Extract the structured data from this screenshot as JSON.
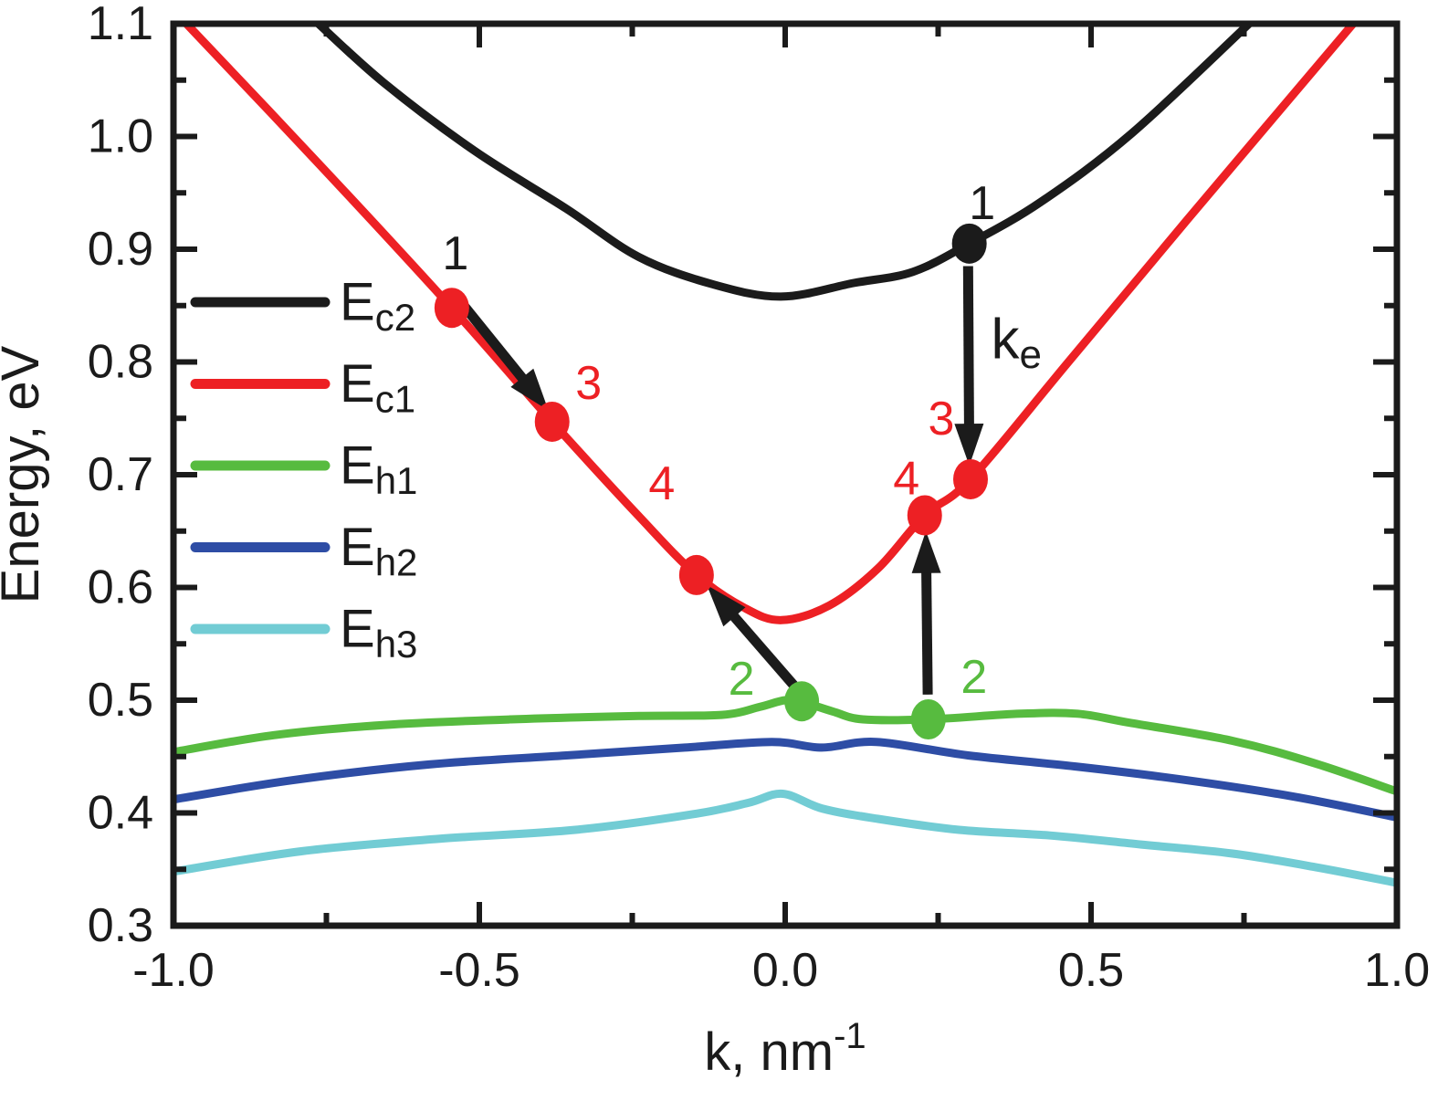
{
  "figure": {
    "kind": "band-structure-dispersion-plot",
    "background": "#ffffff",
    "frame_color": "#1b1b1b"
  },
  "chart_data": {
    "type": "line",
    "title": "",
    "x_axis": {
      "label_main": "k, nm",
      "label_sup": "-1",
      "min": -1.0,
      "max": 1.0,
      "tick_labels": [
        {
          "v": -1.0,
          "t": "-1.0"
        },
        {
          "v": -0.5,
          "t": "-0.5"
        },
        {
          "v": 0.0,
          "t": "0.0"
        },
        {
          "v": 0.5,
          "t": "0.5"
        },
        {
          "v": 1.0,
          "t": "1.0"
        }
      ],
      "major_ticks": [
        -0.5,
        0.0,
        0.5
      ],
      "minor_ticks": [
        -0.75,
        -0.25,
        0.25,
        0.75
      ]
    },
    "y_axis": {
      "label": "Energy, eV",
      "min": 0.3,
      "max": 1.1,
      "tick_labels": [
        {
          "v": 1.1,
          "t": "1.1"
        },
        {
          "v": 1.0,
          "t": "1.0"
        },
        {
          "v": 0.9,
          "t": "0.9"
        },
        {
          "v": 0.8,
          "t": "0.8"
        },
        {
          "v": 0.7,
          "t": "0.7"
        },
        {
          "v": 0.6,
          "t": "0.6"
        },
        {
          "v": 0.5,
          "t": "0.5"
        },
        {
          "v": 0.4,
          "t": "0.4"
        },
        {
          "v": 0.3,
          "t": "0.3"
        }
      ],
      "major_ticks": [
        0.4,
        0.5,
        0.6,
        0.7,
        0.8,
        0.9,
        1.0
      ],
      "minor_ticks": [
        0.35,
        0.45,
        0.55,
        0.65,
        0.75,
        0.85,
        0.95,
        1.05
      ]
    },
    "legend_position": "upper-left",
    "series": [
      {
        "id": "Ec2",
        "legend_main": "E",
        "legend_sub": "c2",
        "color": "#1b1b1b",
        "points": [
          [
            -0.769,
            1.103
          ],
          [
            -0.657,
            1.048
          ],
          [
            -0.507,
            0.987
          ],
          [
            -0.358,
            0.936
          ],
          [
            -0.239,
            0.893
          ],
          [
            -0.119,
            0.869
          ],
          [
            -0.007,
            0.858
          ],
          [
            0.112,
            0.87
          ],
          [
            0.209,
            0.88
          ],
          [
            0.301,
            0.905
          ],
          [
            0.418,
            0.942
          ],
          [
            0.567,
            1.003
          ],
          [
            0.764,
            1.103
          ]
        ]
      },
      {
        "id": "Ec1",
        "legend_main": "E",
        "legend_sub": "c1",
        "color": "#ed2024",
        "points": [
          [
            -0.984,
            1.103
          ],
          [
            -0.761,
            0.975
          ],
          [
            -0.545,
            0.848
          ],
          [
            -0.381,
            0.747
          ],
          [
            -0.239,
            0.663
          ],
          [
            -0.145,
            0.611
          ],
          [
            -0.067,
            0.582
          ],
          [
            -0.006,
            0.571
          ],
          [
            0.072,
            0.584
          ],
          [
            0.152,
            0.617
          ],
          [
            0.228,
            0.664
          ],
          [
            0.303,
            0.696
          ],
          [
            0.463,
            0.8
          ],
          [
            0.657,
            0.926
          ],
          [
            0.933,
            1.103
          ]
        ]
      },
      {
        "id": "Eh1",
        "legend_main": "E",
        "legend_sub": "h1",
        "color": "#57bb3f",
        "points": [
          [
            -1.0,
            0.454
          ],
          [
            -0.836,
            0.469
          ],
          [
            -0.657,
            0.478
          ],
          [
            -0.448,
            0.483
          ],
          [
            -0.239,
            0.486
          ],
          [
            -0.104,
            0.487
          ],
          [
            -0.042,
            0.494
          ],
          [
            0.0,
            0.5
          ],
          [
            0.03,
            0.498
          ],
          [
            0.078,
            0.49
          ],
          [
            0.127,
            0.483
          ],
          [
            0.234,
            0.483
          ],
          [
            0.384,
            0.488
          ],
          [
            0.478,
            0.488
          ],
          [
            0.563,
            0.48
          ],
          [
            0.731,
            0.464
          ],
          [
            0.866,
            0.444
          ],
          [
            1.0,
            0.419
          ]
        ]
      },
      {
        "id": "Eh2",
        "legend_main": "E",
        "legend_sub": "h2",
        "color": "#2e4da5",
        "points": [
          [
            -1.0,
            0.412
          ],
          [
            -0.806,
            0.429
          ],
          [
            -0.582,
            0.443
          ],
          [
            -0.358,
            0.451
          ],
          [
            -0.164,
            0.458
          ],
          [
            -0.022,
            0.463
          ],
          [
            0.06,
            0.458
          ],
          [
            0.149,
            0.463
          ],
          [
            0.299,
            0.451
          ],
          [
            0.478,
            0.441
          ],
          [
            0.657,
            0.429
          ],
          [
            0.836,
            0.414
          ],
          [
            1.0,
            0.396
          ]
        ]
      },
      {
        "id": "Eh3",
        "legend_main": "E",
        "legend_sub": "h3",
        "color": "#72ccd4",
        "points": [
          [
            -1.0,
            0.348
          ],
          [
            -0.791,
            0.366
          ],
          [
            -0.567,
            0.377
          ],
          [
            -0.343,
            0.385
          ],
          [
            -0.149,
            0.399
          ],
          [
            -0.06,
            0.409
          ],
          [
            -0.004,
            0.417
          ],
          [
            0.06,
            0.404
          ],
          [
            0.149,
            0.395
          ],
          [
            0.284,
            0.385
          ],
          [
            0.433,
            0.38
          ],
          [
            0.582,
            0.372
          ],
          [
            0.731,
            0.364
          ],
          [
            0.866,
            0.352
          ],
          [
            1.0,
            0.338
          ]
        ]
      }
    ],
    "markers": [
      {
        "id": "point-1-left",
        "k": -0.545,
        "E": 0.848,
        "dot_color": "#ed2024",
        "label": "1",
        "label_color": "#1b1b1b",
        "label_offset": [
          4,
          -59
        ]
      },
      {
        "id": "point-3-left",
        "k": -0.381,
        "E": 0.747,
        "dot_color": "#ed2024",
        "label": "3",
        "label_color": "#ed2024",
        "label_offset": [
          40,
          -42
        ]
      },
      {
        "id": "point-4-left",
        "k": -0.145,
        "E": 0.611,
        "dot_color": "#ed2024",
        "label": "4",
        "label_color": "#ed2024",
        "label_offset": [
          -38,
          -100
        ]
      },
      {
        "id": "point-2-left",
        "k": 0.027,
        "E": 0.499,
        "dot_color": "#57bb3f",
        "label": "2",
        "label_color": "#57bb3f",
        "label_offset": [
          -66,
          -24
        ]
      },
      {
        "id": "point-1-right",
        "k": 0.301,
        "E": 0.905,
        "dot_color": "#1b1b1b",
        "label": "1",
        "label_color": "#1b1b1b",
        "label_offset": [
          14,
          -44
        ]
      },
      {
        "id": "point-3-right",
        "k": 0.303,
        "E": 0.696,
        "dot_color": "#ed2024",
        "label": "3",
        "label_color": "#ed2024",
        "label_offset": [
          -32,
          -66
        ]
      },
      {
        "id": "point-4-right",
        "k": 0.228,
        "E": 0.664,
        "dot_color": "#ed2024",
        "label": "4",
        "label_color": "#ed2024",
        "label_offset": [
          -20,
          -40
        ]
      },
      {
        "id": "point-2-right",
        "k": 0.234,
        "E": 0.483,
        "dot_color": "#57bb3f",
        "label": "2",
        "label_color": "#57bb3f",
        "label_offset": [
          50,
          -46
        ]
      }
    ],
    "arrows": [
      {
        "id": "arrow-1-to-3-left",
        "from": [
          -0.527,
          0.851
        ],
        "to": [
          -0.387,
          0.757
        ]
      },
      {
        "id": "arrow-2-to-4-left",
        "from": [
          0.024,
          0.507
        ],
        "to": [
          -0.128,
          0.602
        ]
      },
      {
        "id": "arrow-ke-1-to-3-right",
        "from": [
          0.299,
          0.885
        ],
        "to": [
          0.301,
          0.708
        ],
        "label_main": "k",
        "label_sub": "e",
        "label_at": [
          0.378,
          0.82
        ]
      },
      {
        "id": "arrow-2-to-4-right",
        "from": [
          0.233,
          0.505
        ],
        "to": [
          0.23,
          0.65
        ]
      }
    ],
    "arrow_color": "#1b1b1b"
  }
}
